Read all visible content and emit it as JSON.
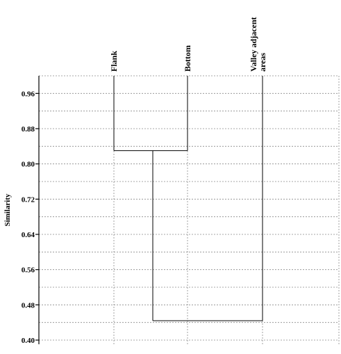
{
  "chart_data": {
    "type": "dendrogram",
    "ylabel": "Similarity",
    "ylim": [
      0.4,
      1.0
    ],
    "yticks": [
      "0.96",
      "0.88",
      "0.80",
      "0.72",
      "0.64",
      "0.56",
      "0.48",
      "0.40"
    ],
    "leaves": [
      {
        "label": "Flank",
        "lines": [
          "Flank"
        ]
      },
      {
        "label": "Bottom",
        "lines": [
          "Bottom"
        ]
      },
      {
        "label": "Valley adjacent areas",
        "lines": [
          "Valley adjacent",
          "areas"
        ]
      }
    ],
    "merges": [
      {
        "left": "Flank",
        "right": "Bottom",
        "similarity": 0.83
      },
      {
        "left": "Flank+Bottom",
        "right": "Valley adjacent areas",
        "similarity": 0.444
      }
    ],
    "grid": true
  }
}
